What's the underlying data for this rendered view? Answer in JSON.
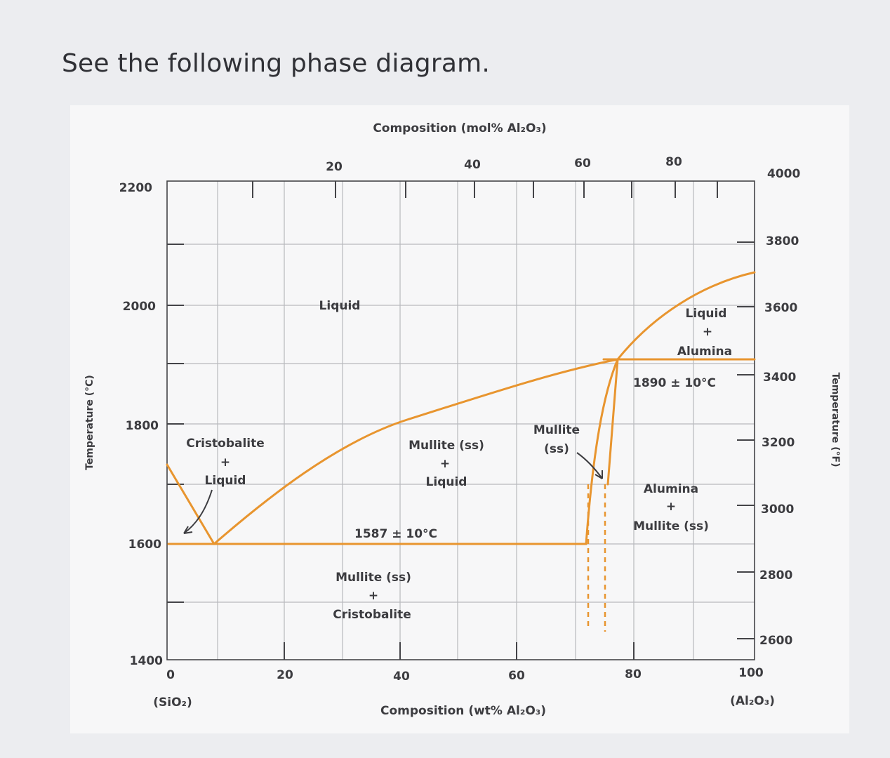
{
  "heading": "See the following phase diagram.",
  "diagram": {
    "top_axis_title": "Composition (mol% Al₂O₃)",
    "bottom_axis_title": "Composition (wt% Al₂O₃)",
    "left_axis_title": "Temperature (°C)",
    "right_axis_title": "Temperature (°F)",
    "bottom_ticks": [
      "0",
      "20",
      "40",
      "60",
      "80",
      "100"
    ],
    "top_ticks": [
      "20",
      "40",
      "60",
      "80"
    ],
    "left_ticks": [
      "1400",
      "1600",
      "1800",
      "2000",
      "2200"
    ],
    "right_ticks": [
      "2600",
      "2800",
      "3000",
      "3200",
      "3400",
      "3600",
      "3800",
      "4000"
    ],
    "end_labels": {
      "left": "(SiO₂)",
      "right": "(Al₂O₃)"
    },
    "regions": {
      "liquid": "Liquid",
      "crist_liquid": [
        "Cristobalite",
        "+",
        "Liquid"
      ],
      "mullite_liquid": [
        "Mullite (ss)",
        "+",
        "Liquid"
      ],
      "mullite_ss": [
        "Mullite",
        "(ss)"
      ],
      "liquid_alumina": [
        "Liquid",
        "+",
        "Alumina"
      ],
      "alumina_mullite": [
        "Alumina",
        "+",
        "Mullite (ss)"
      ],
      "mullite_crist": [
        "Mullite (ss)",
        "+",
        "Cristobalite"
      ]
    },
    "annotations": {
      "eutectic_low": "1587 ± 10°C",
      "eutectic_high": "1890 ± 10°C"
    },
    "colors": {
      "phase_boundary": "#e8952f",
      "grid": "#b8b9bd",
      "axis": "#444448"
    }
  }
}
